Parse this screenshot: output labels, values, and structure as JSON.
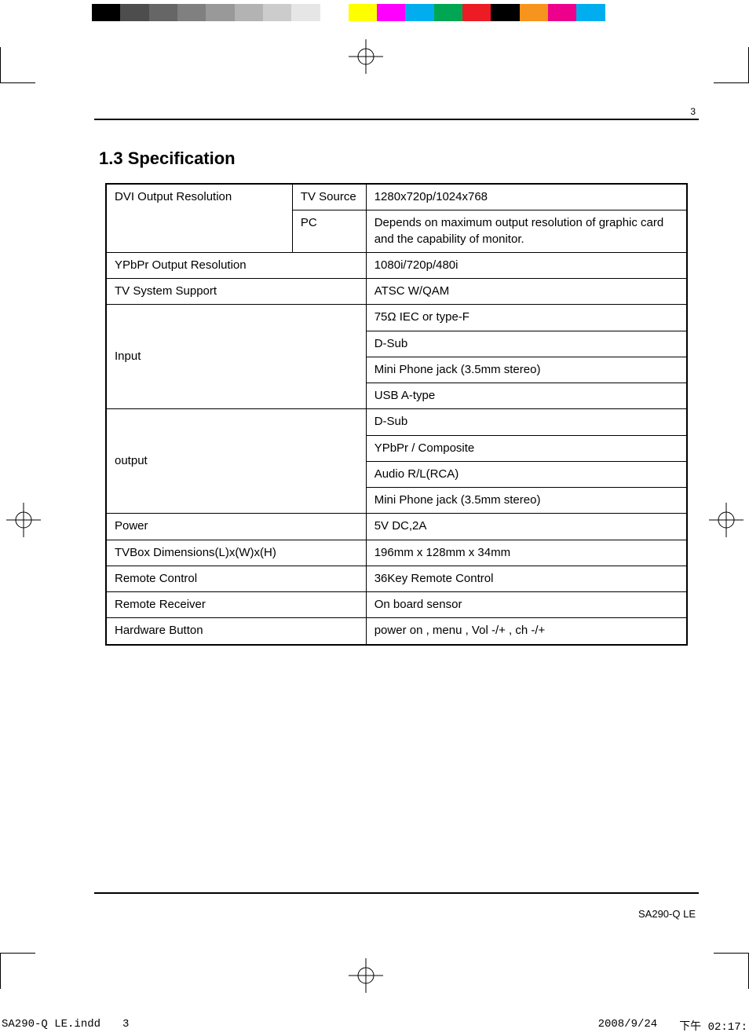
{
  "colorbar": [
    "#000000",
    "#4d4d4d",
    "#666666",
    "#808080",
    "#999999",
    "#b3b3b3",
    "#cccccc",
    "#e6e6e6",
    "#ffffff",
    "#ffff00",
    "#ff00ff",
    "#00aeef",
    "#00a651",
    "#ed1c24",
    "#000000",
    "#f7941d",
    "#ec008c",
    "#00aeef",
    "#ffffff"
  ],
  "page_number": "3",
  "section_title": "1.3 Specification",
  "table": {
    "dvi": {
      "label": "DVI Output Resolution",
      "rows": [
        {
          "sub": "TV Source",
          "val": "1280x720p/1024x768"
        },
        {
          "sub": "PC",
          "val": "Depends on maximum output resolution of graphic card and the capability of monitor."
        }
      ]
    },
    "simple": [
      {
        "key": "YPbPr Output Resolution",
        "val": "1080i/720p/480i"
      },
      {
        "key": "TV System Support",
        "val": "ATSC W/QAM"
      }
    ],
    "input": {
      "label": "Input",
      "vals": [
        "75Ω IEC or type-F",
        "D-Sub",
        "Mini Phone jack (3.5mm stereo)",
        "USB A-type"
      ]
    },
    "output": {
      "label": "output",
      "vals": [
        "D-Sub",
        "YPbPr / Composite",
        "Audio R/L(RCA)",
        "Mini Phone jack (3.5mm stereo)"
      ]
    },
    "tail": [
      {
        "key": "Power",
        "val": "5V DC,2A"
      },
      {
        "key": "TVBox Dimensions(L)x(W)x(H)",
        "val": "196mm x 128mm x 34mm"
      },
      {
        "key": "Remote Control",
        "val": "36Key Remote Control"
      },
      {
        "key": "Remote Receiver",
        "val": "On board sensor"
      },
      {
        "key": "Hardware Button",
        "val": "power on , menu , Vol -/+ , ch -/+"
      }
    ]
  },
  "model": "SA290-Q LE",
  "slug": {
    "file": "SA290-Q LE.indd",
    "page": "3",
    "date": "2008/9/24",
    "time": "下午 02:17:"
  }
}
